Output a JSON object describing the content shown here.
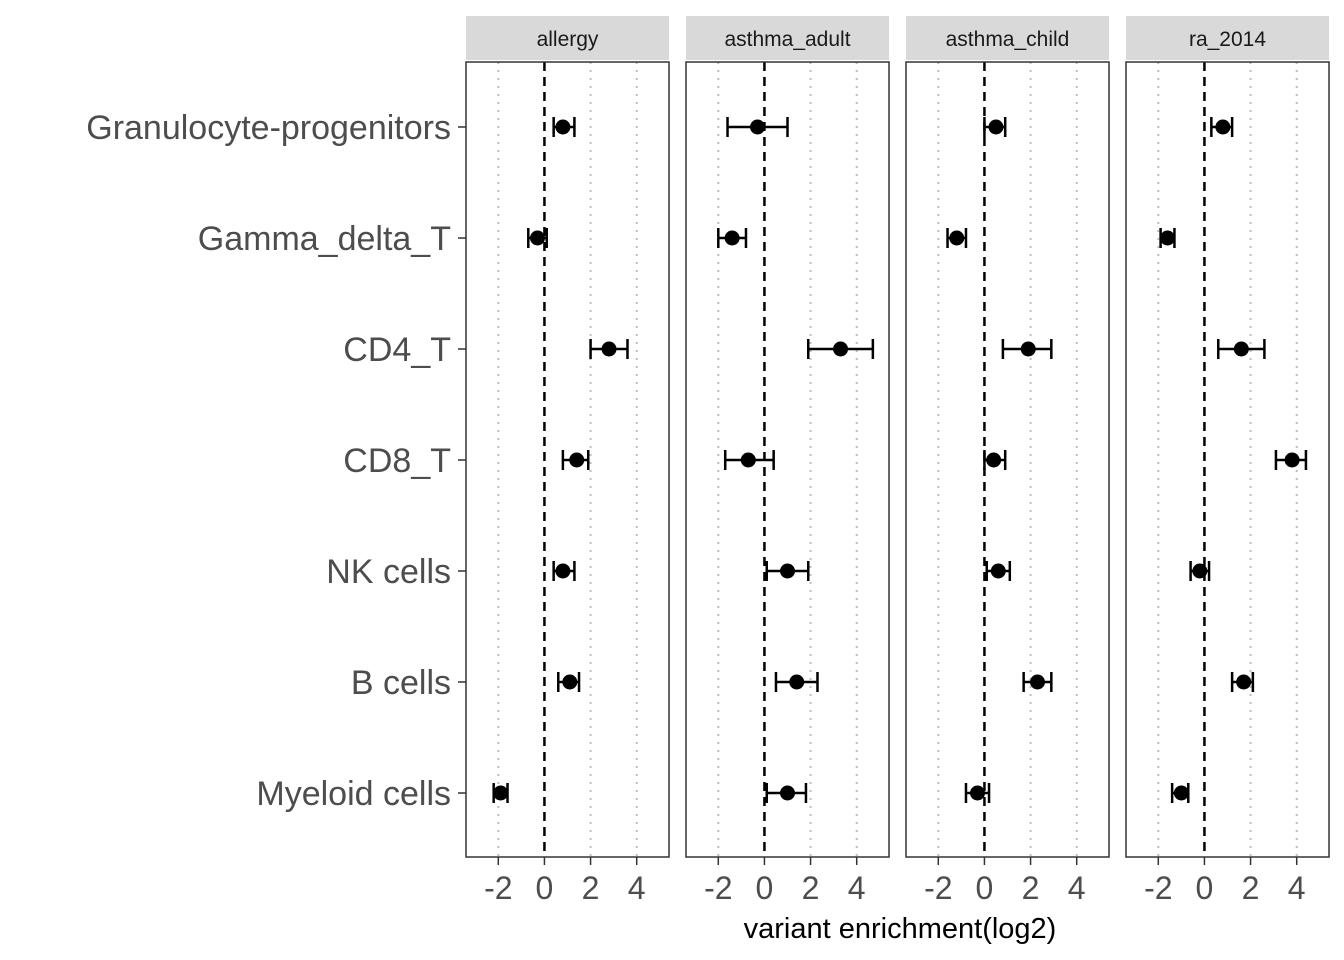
{
  "chart_data": {
    "type": "forest",
    "xlabel": "variant enrichment(log2)",
    "ylabel": "",
    "xlim": [
      -3.4,
      5.4
    ],
    "xticks": [
      -2,
      0,
      2,
      4
    ],
    "xtick_labels": [
      "-2",
      "0",
      "2",
      "4"
    ],
    "reference_line": 0,
    "grid": "vertical dotted",
    "categories": [
      "Granulocyte-progenitors",
      "Gamma_delta_T",
      "CD4_T",
      "CD8_T",
      "NK cells",
      "B cells",
      "Myeloid cells"
    ],
    "panels": [
      {
        "name": "allergy",
        "estimate": [
          0.8,
          -0.3,
          2.8,
          1.4,
          0.8,
          1.1,
          -1.9
        ],
        "lower": [
          0.4,
          -0.7,
          2.0,
          0.8,
          0.4,
          0.6,
          -2.2
        ],
        "upper": [
          1.3,
          0.1,
          3.6,
          1.9,
          1.3,
          1.5,
          -1.6
        ]
      },
      {
        "name": "asthma_adult",
        "estimate": [
          -0.3,
          -1.4,
          3.3,
          -0.7,
          1.0,
          1.4,
          1.0
        ],
        "lower": [
          -1.6,
          -2.0,
          1.9,
          -1.7,
          0.1,
          0.5,
          0.1
        ],
        "upper": [
          1.0,
          -0.8,
          4.7,
          0.4,
          1.9,
          2.3,
          1.8
        ]
      },
      {
        "name": "asthma_child",
        "estimate": [
          0.5,
          -1.2,
          1.9,
          0.4,
          0.6,
          2.3,
          -0.3
        ],
        "lower": [
          0.0,
          -1.6,
          0.8,
          0.0,
          0.1,
          1.7,
          -0.8
        ],
        "upper": [
          0.9,
          -0.8,
          2.9,
          0.9,
          1.1,
          2.9,
          0.2
        ]
      },
      {
        "name": "ra_2014",
        "estimate": [
          0.8,
          -1.6,
          1.6,
          3.8,
          -0.2,
          1.7,
          -1.0
        ],
        "lower": [
          0.3,
          -1.9,
          0.6,
          3.1,
          -0.6,
          1.2,
          -1.4
        ],
        "upper": [
          1.2,
          -1.3,
          2.6,
          4.4,
          0.2,
          2.1,
          -0.7
        ]
      }
    ]
  }
}
